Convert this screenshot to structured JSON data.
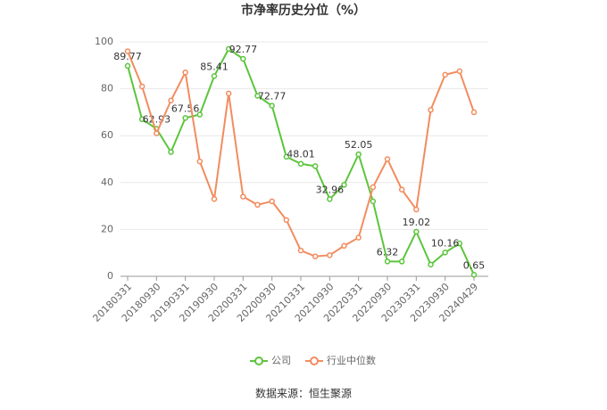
{
  "chart_data": {
    "type": "line",
    "title": "市净率历史分位（%）",
    "categories": [
      "20180331",
      null,
      "20180930",
      null,
      "20190331",
      null,
      "20190930",
      null,
      "20200331",
      null,
      "20200930",
      null,
      "20210331",
      null,
      "20210930",
      null,
      "20220331",
      null,
      "20220930",
      null,
      "20230331",
      null,
      "20230930",
      null,
      "20240429"
    ],
    "series": [
      {
        "name": "公司",
        "color": "#5cc53c",
        "values": [
          89.77,
          67,
          62.93,
          53,
          67.56,
          69,
          85.41,
          97,
          92.77,
          77,
          72.77,
          51,
          48.01,
          47,
          32.96,
          39,
          52.05,
          32,
          6.32,
          6.3,
          19.02,
          5,
          10.16,
          14,
          0.65
        ],
        "value_labels": [
          "89.77",
          null,
          "62.93",
          null,
          "67.56",
          null,
          "85.41",
          null,
          "92.77",
          null,
          "72.77",
          null,
          "48.01",
          null,
          "32.96",
          null,
          "52.05",
          null,
          "6.32",
          null,
          "19.02",
          null,
          "10.16",
          null,
          "0.65"
        ]
      },
      {
        "name": "行业中位数",
        "color": "#f28c5f",
        "values": [
          96,
          81,
          61,
          75,
          87,
          49,
          33,
          78,
          34,
          30.5,
          32,
          24,
          11,
          8.5,
          9,
          13,
          16.5,
          38,
          50,
          37,
          28.5,
          71,
          86,
          87.5,
          70
        ]
      }
    ],
    "ylim": [
      0,
      100
    ],
    "yticks": [
      0,
      20,
      40,
      60,
      80,
      100
    ],
    "grid": true,
    "source": "数据来源：恒生聚源"
  }
}
